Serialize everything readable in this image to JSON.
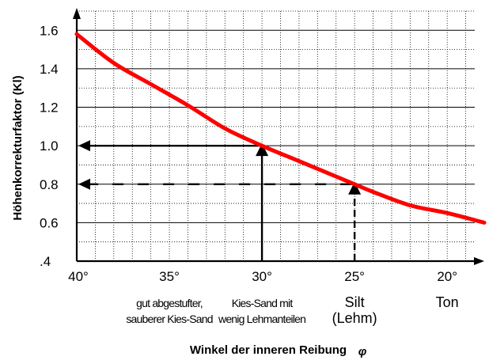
{
  "chart_data": {
    "type": "line",
    "title": "",
    "xlabel": "Winkel der inneren Reibung",
    "xlabel_symbol": "φ",
    "ylabel": "Höhenkorrekturfaktor (Kl)",
    "xlim": [
      40,
      18
    ],
    "ylim": [
      0.4,
      1.7
    ],
    "x_ticks": [
      40,
      35,
      30,
      25,
      20
    ],
    "x_tick_labels": [
      "40°",
      "35°",
      "30°",
      "25°",
      "20°"
    ],
    "y_ticks": [
      0.4,
      0.6,
      0.8,
      1.0,
      1.2,
      1.4,
      1.6
    ],
    "y_tick_labels": [
      ".4",
      "0.6",
      "0.8",
      "1.0",
      "1.2",
      "1.4",
      "1.6"
    ],
    "grid": true,
    "series": [
      {
        "color": "#ff0000",
        "x": [
          40,
          38,
          36,
          34,
          32,
          30,
          28,
          26,
          25,
          24,
          22,
          20,
          18
        ],
        "y": [
          1.58,
          1.43,
          1.32,
          1.21,
          1.09,
          1.0,
          0.92,
          0.84,
          0.8,
          0.76,
          0.69,
          0.65,
          0.6
        ]
      }
    ],
    "reference_lines": [
      {
        "x": 30,
        "y": 1.0,
        "style": "solid"
      },
      {
        "x": 25,
        "y": 0.8,
        "style": "dashed"
      }
    ],
    "annotations": [
      {
        "x": 35,
        "lines": [
          "gut abgestufter,",
          "sauberer Kies-Sand"
        ]
      },
      {
        "x": 30,
        "lines": [
          "Kies-Sand mit",
          "wenig Lehmanteilen"
        ]
      },
      {
        "x": 25,
        "lines": [
          "Silt",
          "(Lehm)"
        ]
      },
      {
        "x": 20,
        "lines": [
          "Ton"
        ]
      }
    ]
  }
}
